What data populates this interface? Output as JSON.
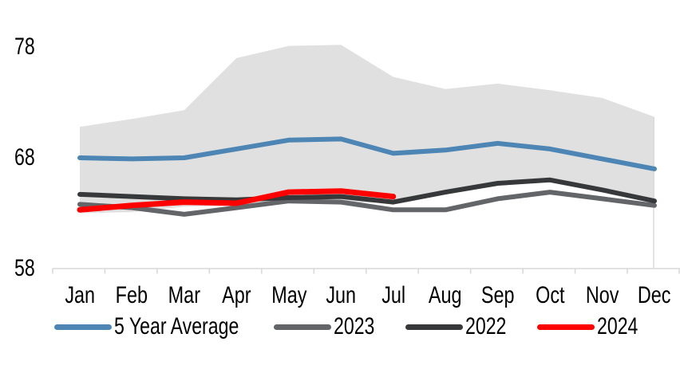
{
  "chart_data": {
    "type": "line",
    "title": "",
    "categories": [
      "Jan",
      "Feb",
      "Mar",
      "Apr",
      "May",
      "Jun",
      "Jul",
      "Aug",
      "Sep",
      "Oct",
      "Nov",
      "Dec"
    ],
    "y_axis": {
      "tick_labels": [
        78,
        68,
        58
      ],
      "min": 58,
      "max": 79
    },
    "grid": false,
    "legend_position": "bottom",
    "axis_color": "#d9d9d9",
    "text_color": "#000000",
    "band": {
      "description": "shaded min-max range behind lines",
      "color": "#e0e0e0",
      "top": [
        70.8,
        71.5,
        72.3,
        77.0,
        78.1,
        78.2,
        75.3,
        74.2,
        74.7,
        74.1,
        73.4,
        71.7
      ],
      "bottom": [
        63.0,
        63.1,
        63.6,
        63.7,
        63.9,
        63.9,
        64.0,
        64.9,
        65.7,
        65.9,
        65.0,
        64.1
      ]
    },
    "series": [
      {
        "name": "5 Year Average",
        "color": "#4d86b4",
        "width": 6,
        "values": [
          68.0,
          67.9,
          68.0,
          68.8,
          69.6,
          69.7,
          68.4,
          68.7,
          69.3,
          68.8,
          67.9,
          67.0
        ]
      },
      {
        "name": "2023",
        "color": "#636568",
        "width": 6,
        "values": [
          63.8,
          63.5,
          62.9,
          63.5,
          64.1,
          64.0,
          63.3,
          63.3,
          64.3,
          64.9,
          64.3,
          63.7
        ]
      },
      {
        "name": "2022",
        "color": "#363839",
        "width": 6,
        "values": [
          64.7,
          64.5,
          64.3,
          64.2,
          64.4,
          64.5,
          64.0,
          64.9,
          65.7,
          66.0,
          65.1,
          64.1
        ]
      },
      {
        "name": "2024",
        "color": "#ff0000",
        "width": 7,
        "values": [
          63.3,
          63.7,
          64.0,
          63.9,
          64.9,
          65.0,
          64.5
        ]
      }
    ]
  }
}
